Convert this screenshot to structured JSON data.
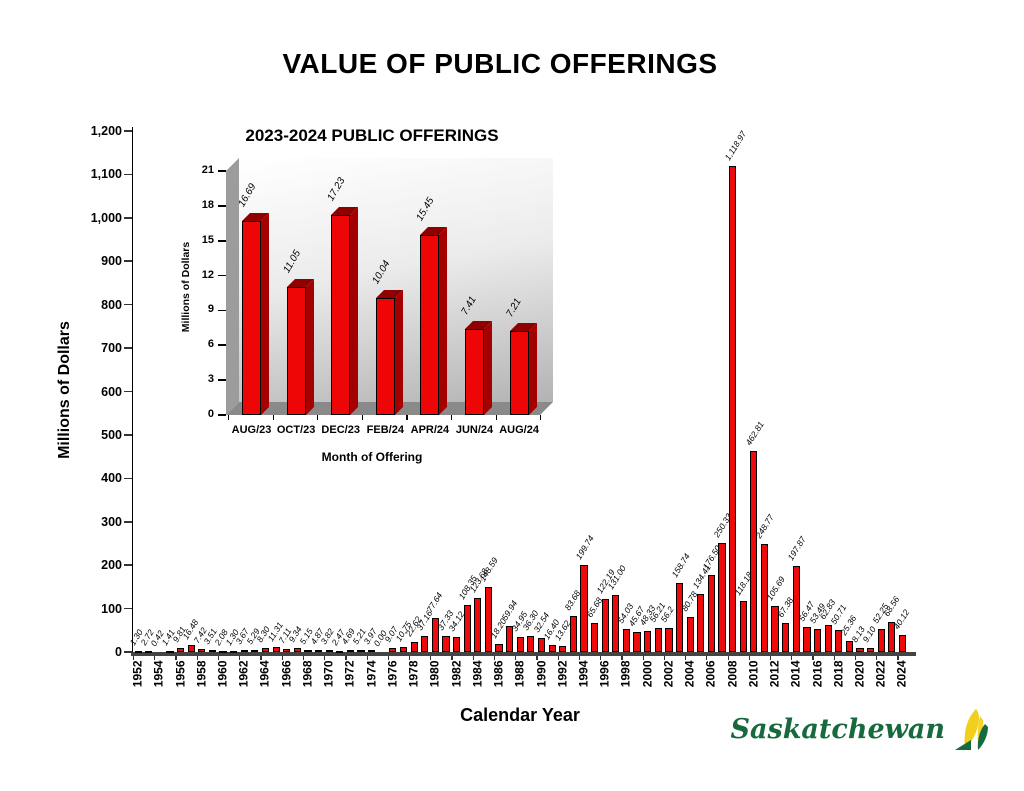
{
  "header": {
    "title": "VALUE OF PUBLIC OFFERINGS"
  },
  "brand": {
    "logo_text": "Saskatchewan",
    "green": "#176a3e",
    "yellow": "#f2cf1d"
  },
  "colors": {
    "bar_red": "#ee0a0a",
    "bar_side_dark": "#a50000",
    "bar_top_dark": "#8f0000",
    "axis": "#333333"
  },
  "chart_data": [
    {
      "type": "bar",
      "title": "VALUE OF PUBLIC OFFERINGS",
      "xlabel": "Calendar Year",
      "ylabel": "Millions of Dollars",
      "ylim": [
        0,
        1200
      ],
      "ytick_labels": [
        "0",
        "100",
        "200",
        "300",
        "400",
        "500",
        "600",
        "700",
        "800",
        "900",
        "1,000",
        "1,100",
        "1,200"
      ],
      "grid": false,
      "legend": false,
      "categories": [
        1952,
        1953,
        1954,
        1955,
        1956,
        1957,
        1958,
        1959,
        1960,
        1961,
        1962,
        1963,
        1964,
        1965,
        1966,
        1967,
        1968,
        1969,
        1970,
        1971,
        1972,
        1973,
        1974,
        1975,
        1976,
        1977,
        1978,
        1979,
        1980,
        1981,
        1982,
        1983,
        1984,
        1985,
        1986,
        1987,
        1988,
        1989,
        1990,
        1991,
        1992,
        1993,
        1994,
        1995,
        1996,
        1997,
        1998,
        1999,
        2000,
        2001,
        2002,
        2003,
        2004,
        2005,
        2006,
        2007,
        2008,
        2009,
        2010,
        2011,
        2012,
        2013,
        2014,
        2015,
        2016,
        2017,
        2018,
        2019,
        2020,
        2021,
        2022,
        2023,
        2024
      ],
      "values": [
        1.3,
        2.72,
        0.42,
        1.41,
        9.81,
        16.48,
        7.42,
        3.51,
        2.08,
        1.3,
        3.67,
        5.29,
        8.3,
        11.31,
        7.11,
        9.34,
        5.15,
        4.87,
        3.82,
        2.47,
        4.69,
        5.21,
        3.97,
        0.0,
        9.07,
        10.75,
        22.62,
        37.16,
        77.64,
        37.33,
        34.12,
        108.35,
        123.68,
        148.59,
        18.2,
        59.94,
        34.95,
        36.3,
        32.54,
        16.4,
        13.62,
        83.68,
        199.74,
        65.68,
        122.19,
        131.0,
        54.03,
        45.67,
        48.33,
        56.21,
        56.2,
        158.74,
        80.78,
        134.41,
        176.5,
        250.33,
        1118.97,
        118.18,
        462.81,
        248.77,
        105.69,
        67.38,
        197.87,
        56.47,
        53.49,
        62.83,
        50.71,
        25.36,
        8.13,
        9.1,
        52.25,
        68.56,
        40.12
      ],
      "bar_labels": [
        "1.30",
        "2.72",
        "0.42",
        "1.41",
        "9.81",
        "16.48",
        "7.42",
        "3.51",
        "2.08",
        "1.30",
        "3.67",
        "5.29",
        "8.30",
        "11.31",
        "7.11",
        "9.34",
        "5.15",
        "4.87",
        "3.82",
        "2.47",
        "4.69",
        "5.21",
        "3.97",
        "0.00",
        "9.07",
        "10.75",
        "22.62",
        "37.16",
        "77.64",
        "37.33",
        "34.12",
        "108.35",
        "123.68",
        "148.59",
        "18.20",
        "59.94",
        "34.95",
        "36.30",
        "32.54",
        "16.40",
        "13.62",
        "83.68",
        "199.74",
        "65.68",
        "122.19",
        "131.00",
        "54.03",
        "45.67",
        "48.33",
        "56.21",
        "56.2",
        "158.74",
        "80.78",
        "134.41",
        "176.50",
        "250.33",
        "1,118.97",
        "118.18",
        "462.81",
        "248.77",
        "105.69",
        "67.38",
        "197.87",
        "56.47",
        "53.49",
        "62.83",
        "50.71",
        "25.36",
        "8.13",
        "9.10",
        "52.25",
        "68.56",
        "40.12"
      ],
      "xtick_labels": [
        "1952",
        "1954",
        "1956",
        "1958",
        "1960",
        "1962",
        "1964",
        "1966",
        "1968",
        "1970",
        "1972",
        "1974",
        "1976",
        "1978",
        "1980",
        "1982",
        "1984",
        "1986",
        "1988",
        "1990",
        "1992",
        "1994",
        "1996",
        "1998",
        "2000",
        "2002",
        "2004",
        "2006",
        "2008",
        "2010",
        "2012",
        "2014",
        "2016",
        "2018",
        "2020",
        "2022",
        "2024"
      ]
    },
    {
      "type": "bar",
      "style": "3d",
      "title": "2023-2024 PUBLIC OFFERINGS",
      "xlabel": "Month of Offering",
      "ylabel": "Millions of Dollars",
      "ylim": [
        0,
        21
      ],
      "ytick_labels": [
        "0",
        "3",
        "6",
        "9",
        "12",
        "15",
        "18",
        "21"
      ],
      "grid": false,
      "legend": false,
      "categories": [
        "AUG/23",
        "OCT/23",
        "DEC/23",
        "FEB/24",
        "APR/24",
        "JUN/24",
        "AUG/24"
      ],
      "values": [
        16.69,
        11.05,
        17.23,
        10.04,
        15.45,
        7.41,
        7.21
      ],
      "bar_labels": [
        "16.69",
        "11.05",
        "17.23",
        "10.04",
        "15.45",
        "7.41",
        "7.21"
      ]
    }
  ]
}
